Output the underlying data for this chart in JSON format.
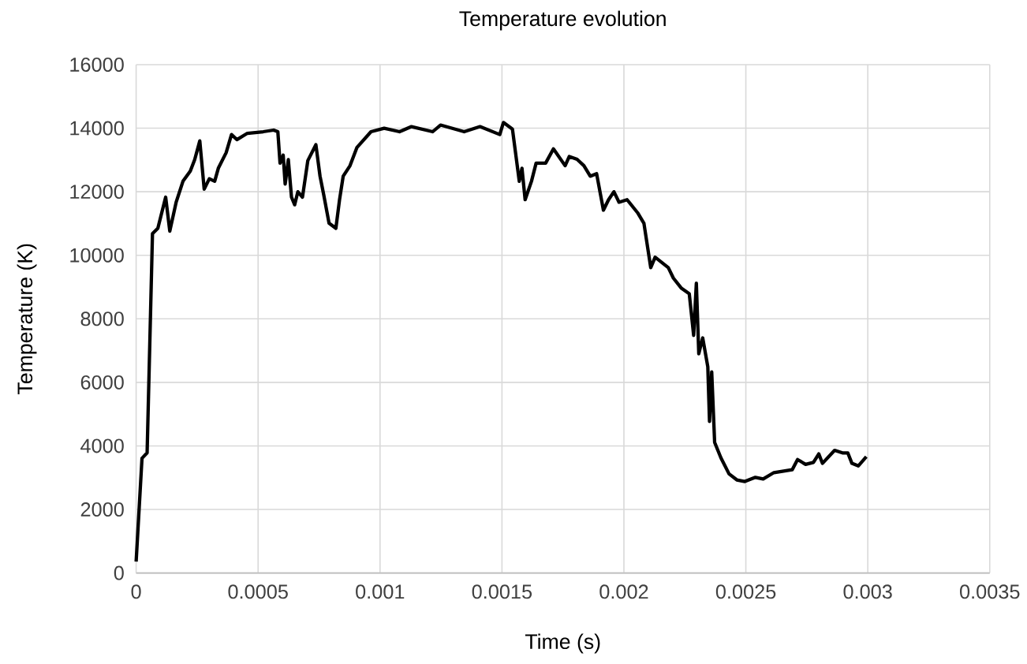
{
  "chart_data": {
    "type": "line",
    "title": "Temperature evolution",
    "xlabel": "Time (s)",
    "ylabel": "Temperature (K)",
    "xlim": [
      0,
      0.0035
    ],
    "ylim": [
      0,
      16000
    ],
    "xticks": [
      0,
      0.0005,
      0.001,
      0.0015,
      0.002,
      0.0025,
      0.003,
      0.0035
    ],
    "yticks": [
      0,
      2000,
      4000,
      6000,
      8000,
      10000,
      12000,
      14000,
      16000
    ],
    "grid": true,
    "marker": "none",
    "line_style": "solid",
    "series": [
      {
        "color": "#000000",
        "x": [
          0,
          2.4e-05,
          4.5e-05,
          6.7e-05,
          8.9e-05,
          0.000121,
          0.000138,
          0.000164,
          0.000192,
          0.000222,
          0.00024,
          0.000261,
          0.000279,
          0.0003,
          0.000322,
          0.000337,
          0.000369,
          0.000391,
          0.000413,
          0.000456,
          0.000521,
          0.000564,
          0.000581,
          0.00059,
          0.000603,
          0.000611,
          0.000624,
          0.000637,
          0.00065,
          0.000663,
          0.000682,
          0.000704,
          0.000737,
          0.000754,
          0.000769,
          0.000791,
          0.000819,
          0.000834,
          0.000849,
          0.000877,
          0.000905,
          0.000963,
          0.001017,
          0.00108,
          0.001129,
          0.001216,
          0.001248,
          0.001345,
          0.00141,
          0.001491,
          0.001506,
          0.001543,
          0.001571,
          0.001582,
          0.001595,
          0.001621,
          0.00164,
          0.001679,
          0.001711,
          0.001759,
          0.001776,
          0.001808,
          0.001836,
          0.001862,
          0.001888,
          0.001916,
          0.001937,
          0.001959,
          0.00198,
          0.002013,
          0.002056,
          0.002082,
          0.00211,
          0.002128,
          0.002182,
          0.002203,
          0.002236,
          0.002268,
          0.002286,
          0.002297,
          0.002307,
          0.002323,
          0.002344,
          0.002351,
          0.00236,
          0.002372,
          0.002398,
          0.002431,
          0.002463,
          0.002496,
          0.002539,
          0.002571,
          0.002615,
          0.00269,
          0.002712,
          0.002745,
          0.002777,
          0.002799,
          0.002814,
          0.002864,
          0.002896,
          0.002918,
          0.002935,
          0.002961,
          0.002994
        ],
        "values": [
          360,
          3610,
          3780,
          10680,
          10850,
          11830,
          10760,
          11670,
          12330,
          12650,
          13010,
          13600,
          12080,
          12410,
          12330,
          12740,
          13230,
          13800,
          13640,
          13840,
          13890,
          13940,
          13890,
          12900,
          13150,
          12240,
          13010,
          11830,
          11590,
          12000,
          11830,
          12980,
          13480,
          12490,
          11910,
          11010,
          10850,
          11750,
          12490,
          12820,
          13390,
          13890,
          14000,
          13890,
          14050,
          13890,
          14100,
          13890,
          14050,
          13800,
          14180,
          13970,
          12330,
          12740,
          11750,
          12330,
          12900,
          12900,
          13350,
          12820,
          13110,
          13020,
          12820,
          12490,
          12570,
          11420,
          11750,
          12000,
          11670,
          11750,
          11340,
          11010,
          9610,
          9940,
          9610,
          9280,
          8960,
          8790,
          7480,
          9120,
          6900,
          7400,
          6490,
          4770,
          6330,
          4110,
          3620,
          3120,
          2930,
          2880,
          3010,
          2960,
          3160,
          3250,
          3570,
          3420,
          3480,
          3750,
          3450,
          3860,
          3780,
          3780,
          3450,
          3370,
          3660
        ]
      }
    ]
  }
}
